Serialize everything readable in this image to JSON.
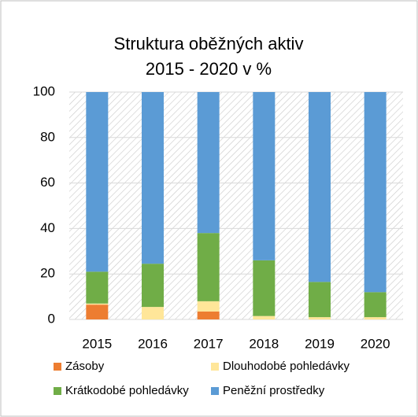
{
  "chart_data": {
    "type": "stacked_bar",
    "title": [
      "Struktura oběžných aktiv",
      "2015 - 2020 v %"
    ],
    "categories": [
      "2015",
      "2016",
      "2017",
      "2018",
      "2019",
      "2020"
    ],
    "series": [
      {
        "name": "Zásoby",
        "color": "#ed7d31",
        "values": [
          6.5,
          0,
          3.5,
          0,
          0,
          0
        ]
      },
      {
        "name": "Dlouhodobé pohledávky",
        "color": "#ffe699",
        "values": [
          0.5,
          5.5,
          4.5,
          1.5,
          1,
          1
        ]
      },
      {
        "name": "Krátkodobé pohledávky",
        "color": "#70ad47",
        "values": [
          14,
          19,
          30,
          24.5,
          15.5,
          11
        ]
      },
      {
        "name": "Peněžní prostředky",
        "color": "#5b9bd5",
        "values": [
          79,
          75.5,
          62,
          74,
          83.5,
          88
        ]
      }
    ],
    "ylim": [
      0,
      100
    ],
    "yticks": [
      0,
      20,
      40,
      60,
      80,
      100
    ],
    "grid": true,
    "legend": "bottom"
  }
}
